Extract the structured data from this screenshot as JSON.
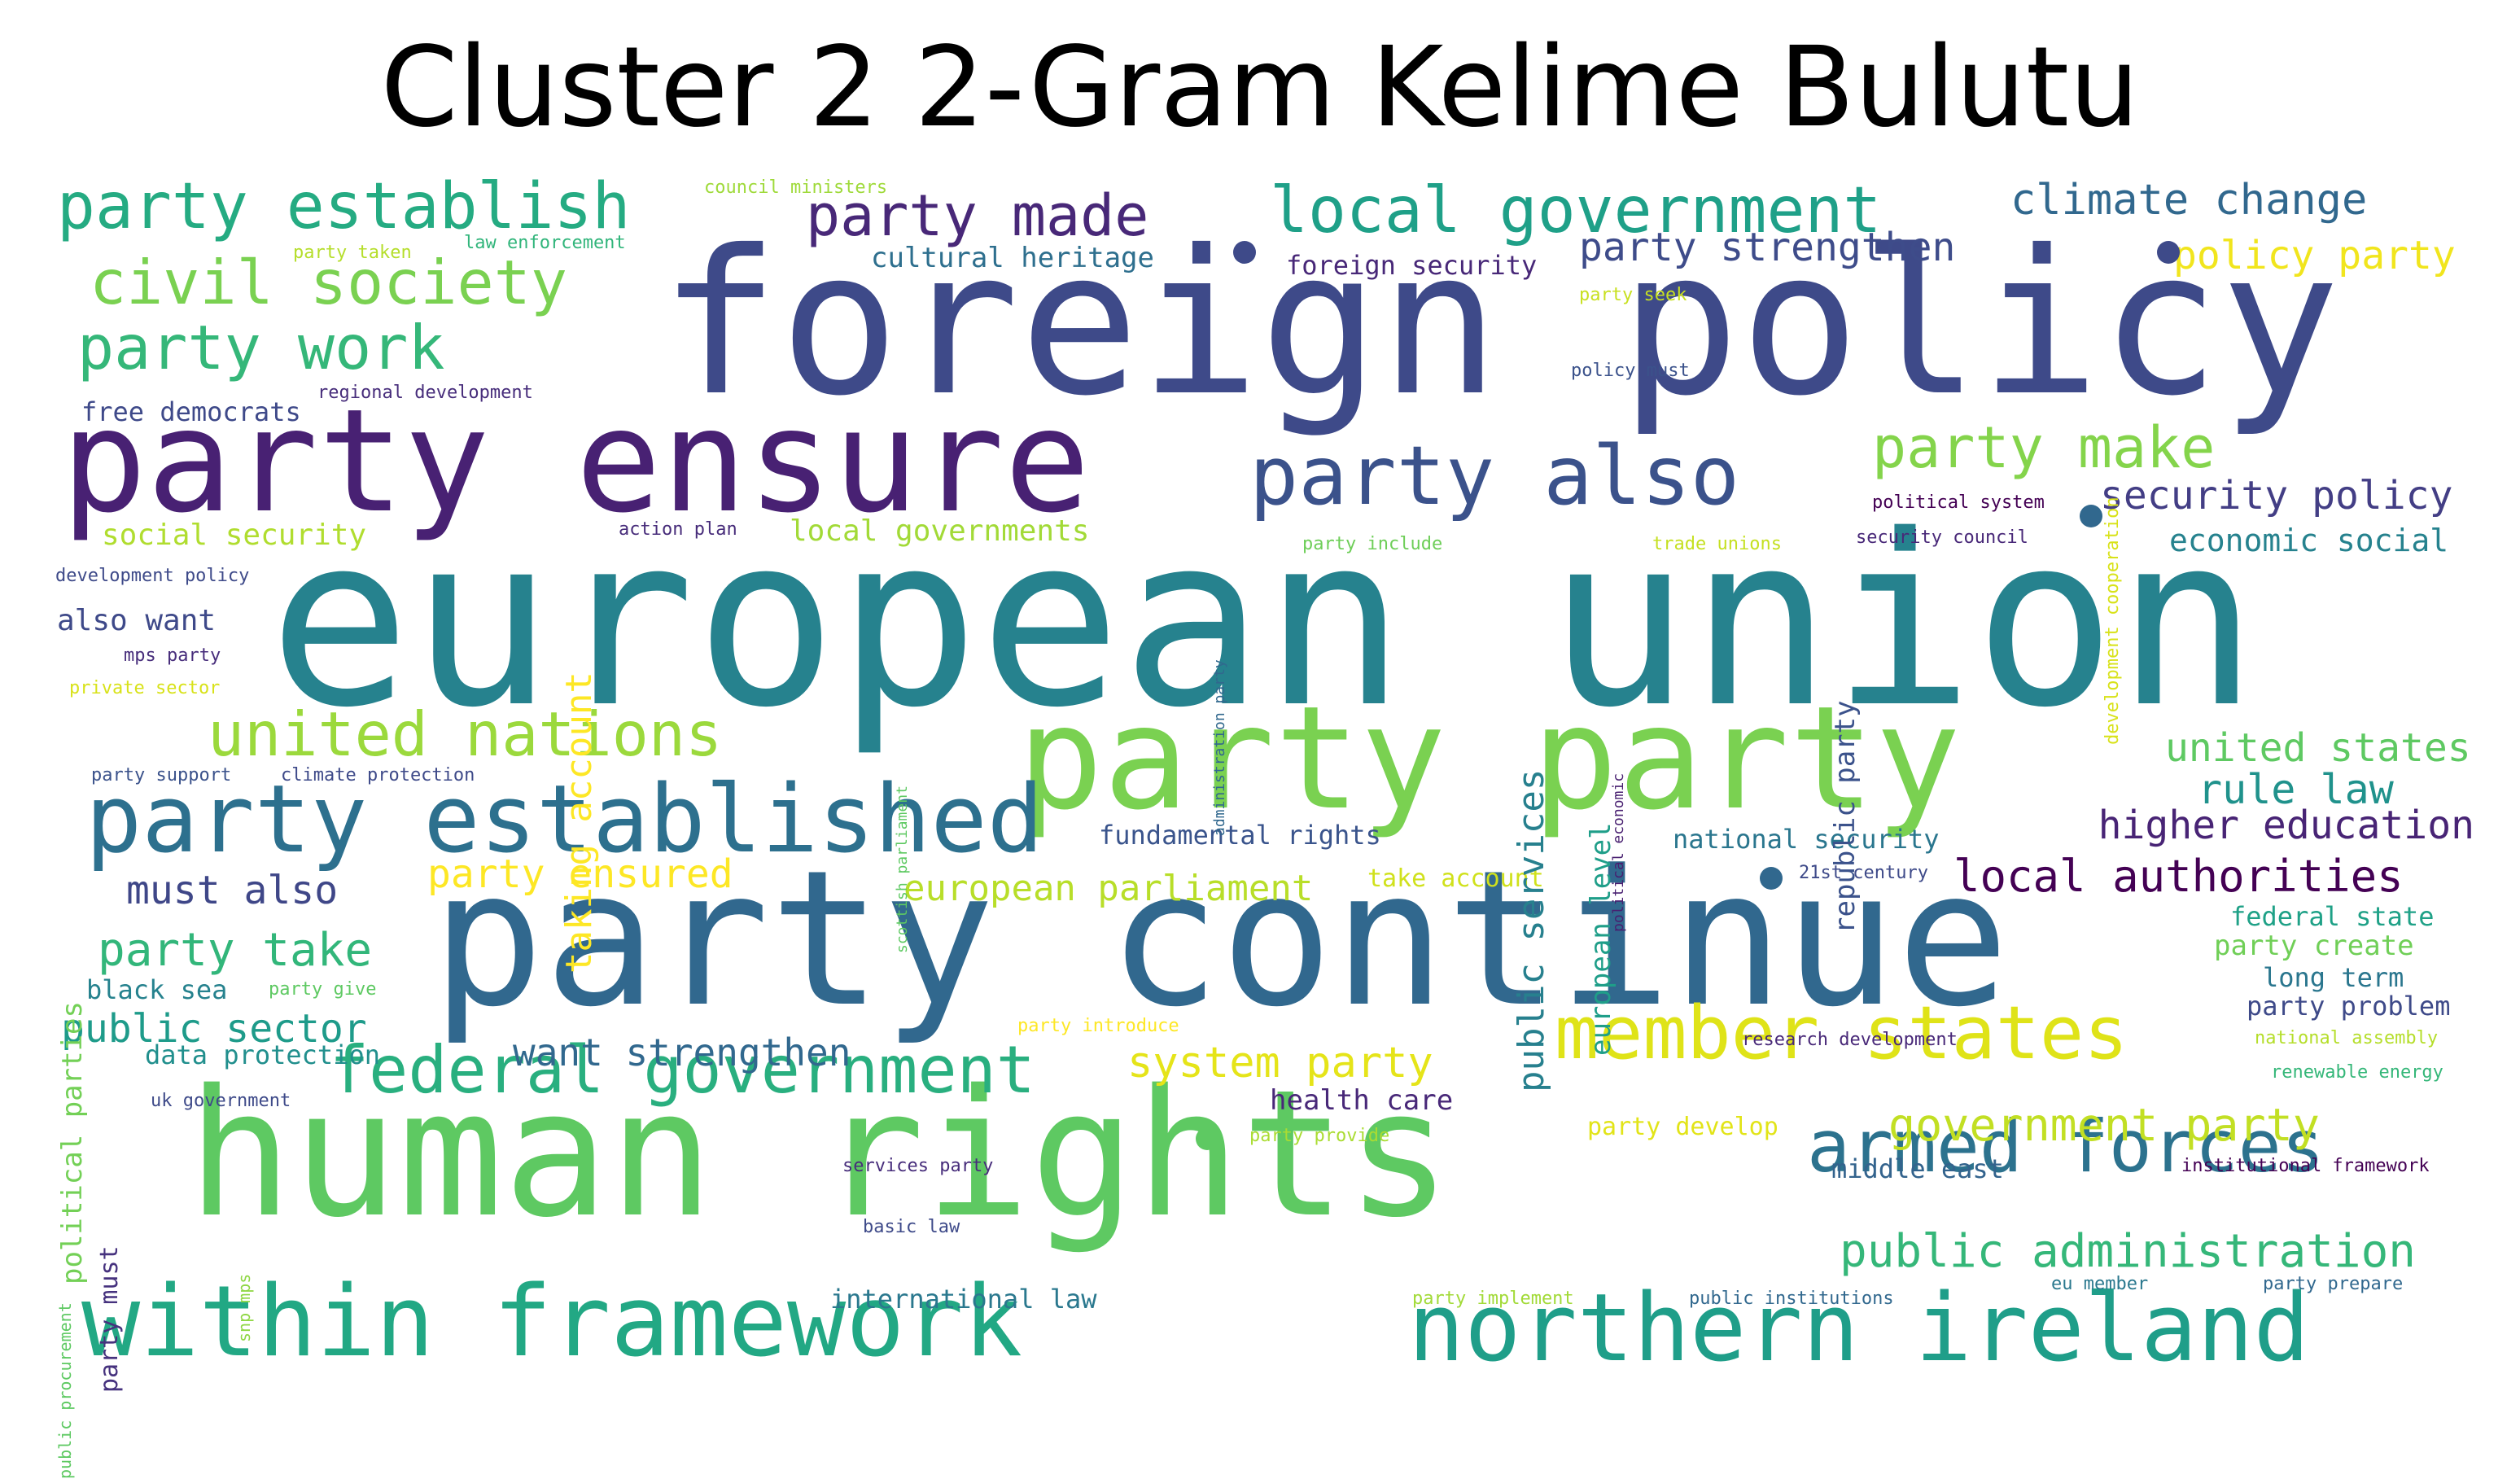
{
  "title": "Cluster 2 2-Gram Kelime Bulutu",
  "palette": {
    "darkPurple": "#482173",
    "purple": "#3e4a89",
    "blue": "#31688e",
    "teal": "#26828e",
    "tealGreen": "#1f9e89",
    "green": "#35b779",
    "lightGreen": "#6ece58",
    "yellowGreen": "#b5de2b",
    "yellow": "#fde725"
  },
  "words": [
    {
      "text": "european union",
      "color": "#26828e"
    },
    {
      "text": "foreign policy",
      "color": "#3e4a89"
    },
    {
      "text": "party continue",
      "color": "#31688e"
    },
    {
      "text": "human rights",
      "color": "#5ec962"
    },
    {
      "text": "party ensure",
      "color": "#482173"
    },
    {
      "text": "party party",
      "color": "#7ad151"
    },
    {
      "text": "party established",
      "color": "#2d708e"
    },
    {
      "text": "within framework",
      "color": "#22a884"
    },
    {
      "text": "northern ireland",
      "color": "#1f9e89"
    },
    {
      "text": "party also",
      "color": "#3b528b"
    },
    {
      "text": "member states",
      "color": "#dfe318"
    },
    {
      "text": "armed forces",
      "color": "#2c728e"
    },
    {
      "text": "federal government",
      "color": "#29af7f"
    },
    {
      "text": "party establish",
      "color": "#25ab82"
    },
    {
      "text": "local government",
      "color": "#1fa088"
    },
    {
      "text": "united nations",
      "color": "#9bd93c"
    },
    {
      "text": "civil society",
      "color": "#7ad151"
    },
    {
      "text": "party work",
      "color": "#35b779"
    },
    {
      "text": "party made",
      "color": "#482878"
    },
    {
      "text": "party make",
      "color": "#84d44b"
    },
    {
      "text": "climate change",
      "color": "#31688e"
    },
    {
      "text": "public administration",
      "color": "#35b779"
    },
    {
      "text": "party take",
      "color": "#32b67a"
    },
    {
      "text": "party strengthen",
      "color": "#3e4c8a"
    },
    {
      "text": "policy party",
      "color": "#f1e51d"
    },
    {
      "text": "security policy",
      "color": "#433e85"
    },
    {
      "text": "local authorities",
      "color": "#440154"
    },
    {
      "text": "rule law",
      "color": "#20928c"
    },
    {
      "text": "united states",
      "color": "#5ec962"
    },
    {
      "text": "higher education",
      "color": "#482475"
    },
    {
      "text": "government party",
      "color": "#c2df23"
    },
    {
      "text": "public sector",
      "color": "#1e9b8a"
    },
    {
      "text": "must also",
      "color": "#3f4788"
    },
    {
      "text": "party ensured",
      "color": "#fde725"
    },
    {
      "text": "european parliament",
      "color": "#b8de29"
    },
    {
      "text": "system party",
      "color": "#e5e419"
    },
    {
      "text": "want strengthen",
      "color": "#31688e"
    },
    {
      "text": "economic social",
      "color": "#26828e"
    },
    {
      "text": "local governments",
      "color": "#a2da37"
    },
    {
      "text": "social security",
      "color": "#b0dd2f"
    },
    {
      "text": "cultural heritage",
      "color": "#2e6f8e"
    },
    {
      "text": "foreign security",
      "color": "#482878"
    },
    {
      "text": "fundamental rights",
      "color": "#3a548c"
    },
    {
      "text": "national security",
      "color": "#2a768e"
    },
    {
      "text": "take account",
      "color": "#d0e11c"
    },
    {
      "text": "also want",
      "color": "#3e4989"
    },
    {
      "text": "free democrats",
      "color": "#3e4989"
    },
    {
      "text": "data protection",
      "color": "#218f8d"
    },
    {
      "text": "health care",
      "color": "#482878"
    },
    {
      "text": "middle east",
      "color": "#33638d"
    },
    {
      "text": "international law",
      "color": "#2a788e"
    },
    {
      "text": "federal state",
      "color": "#1fa187"
    },
    {
      "text": "party create",
      "color": "#70cf57"
    },
    {
      "text": "long term",
      "color": "#2a768e"
    },
    {
      "text": "party problem",
      "color": "#3e4a89"
    },
    {
      "text": "black sea",
      "color": "#26828e"
    },
    {
      "text": "party develop",
      "color": "#e2e418"
    },
    {
      "text": "public services",
      "color": "#27808e"
    },
    {
      "text": "european level",
      "color": "#1f9e89"
    },
    {
      "text": "taking account",
      "color": "#fde725"
    },
    {
      "text": "republic party",
      "color": "#3b528b"
    },
    {
      "text": "political parties",
      "color": "#73d056"
    },
    {
      "text": "party must",
      "color": "#46327e"
    },
    {
      "text": "council ministers",
      "color": "#9fda3a"
    },
    {
      "text": "party taken",
      "color": "#b5de2b"
    },
    {
      "text": "law enforcement",
      "color": "#31b57b"
    },
    {
      "text": "regional development",
      "color": "#472d7b"
    },
    {
      "text": "party seek",
      "color": "#c8e020"
    },
    {
      "text": "policy must",
      "color": "#3b528b"
    },
    {
      "text": "action plan",
      "color": "#472c7a"
    },
    {
      "text": "party include",
      "color": "#6ece58"
    },
    {
      "text": "trade unions",
      "color": "#c5e021"
    },
    {
      "text": "political system",
      "color": "#440154"
    },
    {
      "text": "security council",
      "color": "#482878"
    },
    {
      "text": "development cooperation",
      "color": "#d8e219"
    },
    {
      "text": "administration party",
      "color": "#31688e"
    },
    {
      "text": "scottish parliament",
      "color": "#5ec962"
    },
    {
      "text": "political economic",
      "color": "#481f70"
    },
    {
      "text": "development policy",
      "color": "#3e4a89"
    },
    {
      "text": "mps party",
      "color": "#472d7b"
    },
    {
      "text": "private sector",
      "color": "#d8e219"
    },
    {
      "text": "party support",
      "color": "#3b528b"
    },
    {
      "text": "climate protection",
      "color": "#3e4a89"
    },
    {
      "text": "party give",
      "color": "#5ec962"
    },
    {
      "text": "party introduce",
      "color": "#fde725"
    },
    {
      "text": "research development",
      "color": "#482878"
    },
    {
      "text": "national assembly",
      "color": "#b5de2b"
    },
    {
      "text": "renewable energy",
      "color": "#35b779"
    },
    {
      "text": "uk government",
      "color": "#3e4a89"
    },
    {
      "text": "party provide",
      "color": "#aadc32"
    },
    {
      "text": "services party",
      "color": "#472d7b"
    },
    {
      "text": "institutional framework",
      "color": "#440154"
    },
    {
      "text": "basic law",
      "color": "#3e4a89"
    },
    {
      "text": "party implement",
      "color": "#a2da37"
    },
    {
      "text": "public institutions",
      "color": "#31688e"
    },
    {
      "text": "eu member",
      "color": "#2a788e"
    },
    {
      "text": "party prepare",
      "color": "#31688e"
    },
    {
      "text": "21st century",
      "color": "#3e4a89"
    },
    {
      "text": "public procurement",
      "color": "#5ec962"
    },
    {
      "text": "snp mps",
      "color": "#8fd744"
    }
  ],
  "dots": [
    {
      "color": "#3e4a89"
    },
    {
      "color": "#3e4a89"
    },
    {
      "color": "#31688e"
    },
    {
      "color": "#5ec962"
    },
    {
      "color": "#31688e"
    }
  ]
}
